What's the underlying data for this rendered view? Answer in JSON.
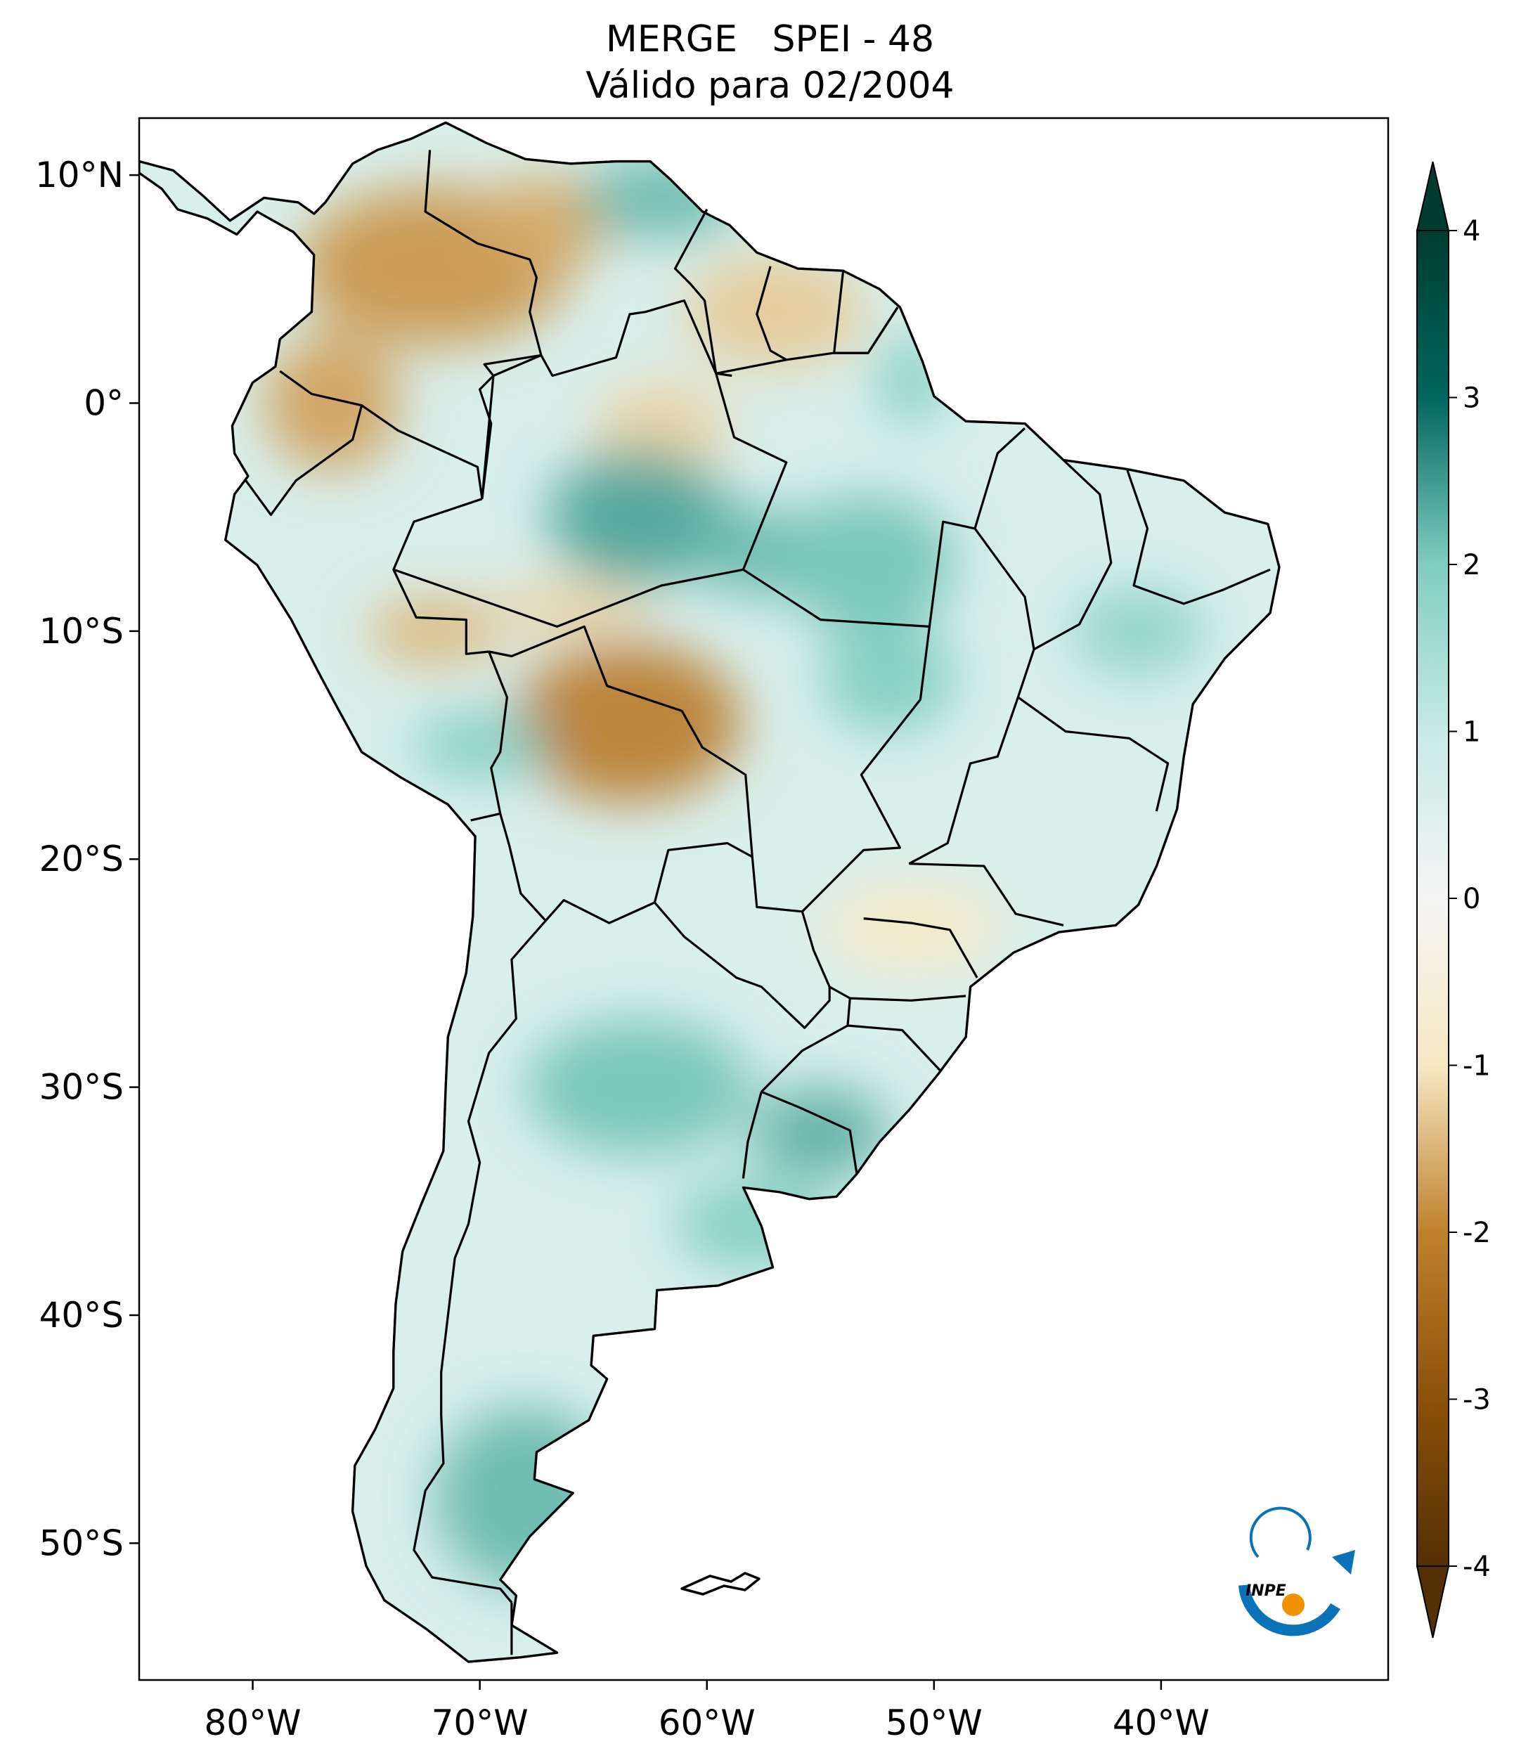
{
  "title": {
    "line1": "MERGE   SPEI - 48",
    "line2": "Válido para 02/2004"
  },
  "map": {
    "region": "South America",
    "projection": "plate carree",
    "lon_range": [
      -85,
      -30
    ],
    "lat_range": [
      -56,
      12.5
    ],
    "lon_ticks": [
      {
        "value": -80,
        "label": "80°W"
      },
      {
        "value": -70,
        "label": "70°W"
      },
      {
        "value": -60,
        "label": "60°W"
      },
      {
        "value": -50,
        "label": "50°W"
      },
      {
        "value": -40,
        "label": "40°W"
      }
    ],
    "lat_ticks": [
      {
        "value": 10,
        "label": "10°N"
      },
      {
        "value": 0,
        "label": "0°"
      },
      {
        "value": -10,
        "label": "10°S"
      },
      {
        "value": -20,
        "label": "20°S"
      },
      {
        "value": -30,
        "label": "30°S"
      },
      {
        "value": -40,
        "label": "40°S"
      },
      {
        "value": -50,
        "label": "50°S"
      }
    ],
    "anomaly_regions": [
      {
        "lon": -72,
        "lat": 6,
        "rx": 6,
        "ry": 3.5,
        "value": -1.8
      },
      {
        "lon": -76.5,
        "lat": 0,
        "rx": 3,
        "ry": 3,
        "value": -1.7
      },
      {
        "lon": -67,
        "lat": 8,
        "rx": 3,
        "ry": 2,
        "value": -1.6
      },
      {
        "lon": -63.5,
        "lat": -14,
        "rx": 5,
        "ry": 3.5,
        "value": -2.1
      },
      {
        "lon": -72,
        "lat": -10,
        "rx": 3,
        "ry": 1.5,
        "value": -1.5
      },
      {
        "lon": -66,
        "lat": -9,
        "rx": 3.5,
        "ry": 1.2,
        "value": -1.2
      },
      {
        "lon": -57,
        "lat": 4,
        "rx": 4,
        "ry": 2.5,
        "value": -1.3
      },
      {
        "lon": -62,
        "lat": -1,
        "rx": 3,
        "ry": 2,
        "value": -1.2
      },
      {
        "lon": -51,
        "lat": -23,
        "rx": 4,
        "ry": 2,
        "value": -0.9
      },
      {
        "lon": -62,
        "lat": 9,
        "rx": 3.5,
        "ry": 1.8,
        "value": 2.2
      },
      {
        "lon": -63,
        "lat": -5,
        "rx": 4,
        "ry": 3,
        "value": 2.4
      },
      {
        "lon": -58,
        "lat": -6.5,
        "rx": 2.5,
        "ry": 2,
        "value": 2.2
      },
      {
        "lon": -53,
        "lat": -7,
        "rx": 4,
        "ry": 3,
        "value": 2.1
      },
      {
        "lon": -52,
        "lat": -12,
        "rx": 3,
        "ry": 2.5,
        "value": 2.0
      },
      {
        "lon": -51,
        "lat": 1,
        "rx": 1.5,
        "ry": 2,
        "value": 2.0
      },
      {
        "lon": -41,
        "lat": -10,
        "rx": 3,
        "ry": 2,
        "value": 1.8
      },
      {
        "lon": -63,
        "lat": -30,
        "rx": 5,
        "ry": 3,
        "value": 2.1
      },
      {
        "lon": -58,
        "lat": -36,
        "rx": 3.5,
        "ry": 2,
        "value": 2.0
      },
      {
        "lon": -55,
        "lat": -32,
        "rx": 3,
        "ry": 2,
        "value": 2.3
      },
      {
        "lon": -68,
        "lat": -48,
        "rx": 4,
        "ry": 4,
        "value": 2.2
      },
      {
        "lon": -70,
        "lat": -15,
        "rx": 3,
        "ry": 1.5,
        "value": 2.0
      }
    ],
    "logo_text": "INPE"
  },
  "colorbar": {
    "colormap": "BrBG",
    "min": -4,
    "max": 4,
    "extend": "both",
    "ticks": [
      4,
      3,
      2,
      1,
      0,
      -1,
      -2,
      -3,
      -4
    ],
    "tick_labels": [
      "4",
      "3",
      "2",
      "1",
      "0",
      "-1",
      "-2",
      "-3",
      "-4"
    ]
  },
  "colors": {
    "negative_strong": "#543005",
    "negative_mid": "#bf812d",
    "neutral": "#f5f5f5",
    "positive_mid": "#35978f",
    "positive_strong": "#003c30",
    "logo_blue": "#0a72b8",
    "logo_orange": "#f39200"
  }
}
